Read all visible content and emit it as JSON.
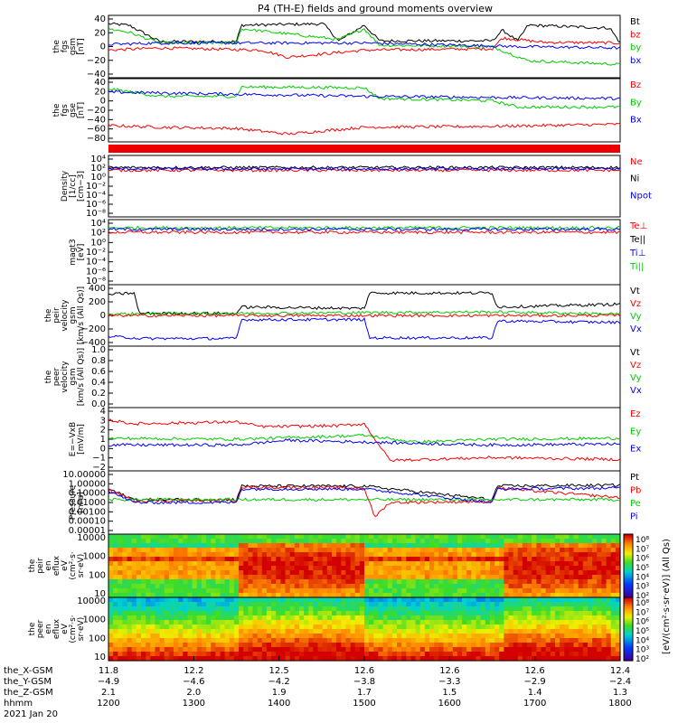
{
  "title": "P4 (TH-E) fields and ground moments overview",
  "chart_data": [
    {
      "id": "fgs_gsm",
      "type": "line",
      "ylabel": [
        "the",
        "fgs",
        "gsm",
        "[nT]"
      ],
      "yticks": [
        "40",
        "20",
        "0",
        "−20",
        "−40"
      ],
      "ylim": [
        -40,
        40
      ],
      "legend": [
        {
          "name": "Bt",
          "color": "#000000"
        },
        {
          "name": "bz",
          "color": "#ff0000"
        },
        {
          "name": "by",
          "color": "#00cc00"
        },
        {
          "name": "bx",
          "color": "#0000ff"
        }
      ],
      "series": [
        {
          "name": "Bt",
          "color": "#000000",
          "x": [
            0,
            0.04,
            0.1,
            0.25,
            0.26,
            0.42,
            0.45,
            0.5,
            0.53,
            0.75,
            0.77,
            0.8,
            0.82,
            0.98,
            1.0
          ],
          "y": [
            32,
            30,
            7,
            7,
            30,
            32,
            8,
            30,
            8,
            8,
            23,
            8,
            30,
            26,
            5
          ]
        },
        {
          "name": "bz",
          "color": "#ff0000",
          "x": [
            0,
            0.1,
            0.3,
            0.35,
            0.5,
            0.75,
            0.77,
            0.85,
            1.0
          ],
          "y": [
            -5,
            -2,
            -5,
            -15,
            -5,
            -3,
            12,
            6,
            5
          ]
        },
        {
          "name": "by",
          "color": "#00cc00",
          "x": [
            0,
            0.04,
            0.1,
            0.25,
            0.26,
            0.45,
            0.5,
            0.53,
            0.75,
            0.82,
            1.0
          ],
          "y": [
            25,
            20,
            5,
            5,
            25,
            10,
            25,
            2,
            0,
            -20,
            -25
          ]
        },
        {
          "name": "bx",
          "color": "#0000ff",
          "x": [
            0,
            0.1,
            0.5,
            0.8,
            1.0
          ],
          "y": [
            3,
            5,
            5,
            0,
            -2
          ]
        }
      ]
    },
    {
      "id": "fgs_gse",
      "type": "line",
      "ylabel": [
        "the",
        "fgs",
        "gse",
        "[nT]"
      ],
      "yticks": [
        "40",
        "20",
        "0",
        "−20",
        "−40",
        "−60",
        "−80"
      ],
      "ylim": [
        -90,
        45
      ],
      "legend": [
        {
          "name": "Bz",
          "color": "#ff0000"
        },
        {
          "name": "By",
          "color": "#00cc00"
        },
        {
          "name": "Bx",
          "color": "#0000ff"
        }
      ],
      "series": [
        {
          "name": "Bz",
          "color": "#ff0000",
          "x": [
            0,
            0.1,
            0.25,
            0.35,
            0.5,
            0.75,
            1.0
          ],
          "y": [
            -58,
            -62,
            -65,
            -78,
            -62,
            -60,
            -55
          ]
        },
        {
          "name": "By",
          "color": "#00cc00",
          "x": [
            0,
            0.1,
            0.25,
            0.26,
            0.5,
            0.53,
            0.75,
            0.8,
            1.0
          ],
          "y": [
            28,
            10,
            10,
            32,
            30,
            5,
            0,
            -15,
            -15
          ]
        },
        {
          "name": "Bx",
          "color": "#0000ff",
          "x": [
            0,
            0.3,
            0.5,
            1.0
          ],
          "y": [
            20,
            14,
            10,
            5
          ]
        }
      ]
    },
    {
      "id": "density",
      "type": "line",
      "ylabel": [
        "Density",
        "[1/cc]",
        "[cm−3]"
      ],
      "scale": "log",
      "yticks": [
        "10⁴",
        "10²",
        "10⁰",
        "10⁻²",
        "10⁻⁴",
        "10⁻⁶",
        "10⁻⁸"
      ],
      "ylim": [
        -8,
        4
      ],
      "legend": [
        {
          "name": "Ne",
          "color": "#ff0000"
        },
        {
          "name": "Ni",
          "color": "#000000"
        },
        {
          "name": "Npot",
          "color": "#0000ff"
        }
      ],
      "series": [
        {
          "name": "Ni",
          "color": "#000000",
          "x": [
            0,
            1.0
          ],
          "y": [
            2.0,
            2.0
          ]
        },
        {
          "name": "Ne",
          "color": "#ff0000",
          "x": [
            0,
            1.0
          ],
          "y": [
            1.4,
            1.4
          ]
        },
        {
          "name": "Npot",
          "color": "#0000ff",
          "x": [
            0,
            1.0
          ],
          "y": [
            1.7,
            1.7
          ]
        }
      ]
    },
    {
      "id": "temp",
      "type": "line",
      "ylabel": [
        "magt3",
        "[eV]"
      ],
      "scale": "log",
      "yticks": [
        "10⁴",
        "10²",
        "10⁰",
        "10⁻²",
        "10⁻⁴",
        "10⁻⁶",
        "10⁻⁸"
      ],
      "ylim": [
        -8,
        4
      ],
      "legend": [
        {
          "name": "Te⊥",
          "color": "#ff0000"
        },
        {
          "name": "Te||",
          "color": "#000000"
        },
        {
          "name": "Ti⊥",
          "color": "#0000ff"
        },
        {
          "name": "Ti||",
          "color": "#00cc00"
        }
      ],
      "series": [
        {
          "name": "Ti||",
          "color": "#00cc00",
          "x": [
            0,
            1.0
          ],
          "y": [
            2.9,
            2.9
          ]
        },
        {
          "name": "Ti⊥",
          "color": "#0000ff",
          "x": [
            0,
            1.0
          ],
          "y": [
            2.6,
            2.6
          ]
        },
        {
          "name": "Te⊥",
          "color": "#ff0000",
          "x": [
            0,
            1.0
          ],
          "y": [
            2.0,
            2.0
          ]
        }
      ]
    },
    {
      "id": "peir_vel",
      "type": "line",
      "ylabel": [
        "the",
        "peir",
        "velocity",
        "gsm",
        "[km/s (All Qs)]"
      ],
      "yticks": [
        "400",
        "200",
        "0",
        "−200",
        "−400"
      ],
      "ylim": [
        -400,
        400
      ],
      "legend": [
        {
          "name": "Vt",
          "color": "#000000"
        },
        {
          "name": "Vz",
          "color": "#ff0000"
        },
        {
          "name": "Vy",
          "color": "#00cc00"
        },
        {
          "name": "Vx",
          "color": "#0000ff"
        }
      ],
      "series": [
        {
          "name": "Vt",
          "color": "#000000",
          "x": [
            0,
            0.05,
            0.06,
            0.25,
            0.26,
            0.5,
            0.51,
            0.75,
            0.76,
            1.0
          ],
          "y": [
            300,
            320,
            30,
            30,
            120,
            100,
            320,
            320,
            120,
            160
          ]
        },
        {
          "name": "Vx",
          "color": "#0000ff",
          "x": [
            0,
            0.05,
            0.06,
            0.25,
            0.26,
            0.5,
            0.51,
            0.75,
            0.76,
            1.0
          ],
          "y": [
            -300,
            -320,
            -330,
            -330,
            -60,
            -60,
            -320,
            -320,
            -80,
            -100
          ]
        },
        {
          "name": "Vy",
          "color": "#00cc00",
          "x": [
            0,
            0.25,
            0.5,
            0.75,
            1.0
          ],
          "y": [
            20,
            30,
            40,
            50,
            20
          ]
        },
        {
          "name": "Vz",
          "color": "#ff0000",
          "x": [
            0,
            1.0
          ],
          "y": [
            -2,
            -2
          ]
        }
      ]
    },
    {
      "id": "peer_vel",
      "type": "line",
      "ylabel": [
        "the",
        "peer",
        "velocity",
        "gsm",
        "[km/s (All Qs)]"
      ],
      "yticks": [
        "1.0",
        "0.8",
        "0.6",
        "0.4",
        "0.2",
        "0.0"
      ],
      "ylim": [
        0,
        1
      ],
      "legend": [
        {
          "name": "Vt",
          "color": "#000000"
        },
        {
          "name": "Vz",
          "color": "#ff0000"
        },
        {
          "name": "Vy",
          "color": "#00cc00"
        },
        {
          "name": "Vx",
          "color": "#0000ff"
        }
      ],
      "series": []
    },
    {
      "id": "efield",
      "type": "line",
      "ylabel": [
        "E=−VxB",
        "[mV/m]"
      ],
      "yticks": [
        "4",
        "3",
        "2",
        "1",
        "0",
        "−1",
        "−2"
      ],
      "ylim": [
        -2,
        4
      ],
      "legend": [
        {
          "name": "Ez",
          "color": "#ff0000"
        },
        {
          "name": "Ey",
          "color": "#00cc00"
        },
        {
          "name": "Ex",
          "color": "#0000ff"
        }
      ],
      "series": [
        {
          "name": "Ez",
          "color": "#ff0000",
          "x": [
            0,
            0.05,
            0.25,
            0.3,
            0.45,
            0.5,
            0.55,
            0.75,
            1.0
          ],
          "y": [
            3,
            2.6,
            2.8,
            2.3,
            2.4,
            2.6,
            -1.2,
            -0.9,
            -1.1
          ]
        },
        {
          "name": "Ey",
          "color": "#00cc00",
          "x": [
            0,
            0.25,
            0.5,
            0.6,
            0.75,
            1.0
          ],
          "y": [
            1.1,
            1.0,
            1.4,
            0.7,
            1.0,
            1.1
          ]
        },
        {
          "name": "Ex",
          "color": "#0000ff",
          "x": [
            0,
            0.25,
            0.35,
            0.5,
            0.75,
            1.0
          ],
          "y": [
            0.4,
            0.4,
            0.9,
            0.7,
            0.4,
            0.5
          ]
        }
      ]
    },
    {
      "id": "pressure",
      "type": "line",
      "ylabel": [
        "Pressure",
        "[nPa]"
      ],
      "scale": "log",
      "yticks": [
        "10.00000",
        "1.00000",
        "0.10000",
        "0.01000",
        "0.00100",
        "0.00010",
        "0.00001"
      ],
      "ylim": [
        -5,
        1
      ],
      "legend": [
        {
          "name": "Pt",
          "color": "#000000"
        },
        {
          "name": "Pb",
          "color": "#ff0000"
        },
        {
          "name": "Pe",
          "color": "#00cc00"
        },
        {
          "name": "Pi",
          "color": "#0000ff"
        }
      ],
      "series": [
        {
          "name": "Pt",
          "color": "#000000",
          "x": [
            0,
            0.05,
            0.25,
            0.26,
            0.5,
            0.75,
            0.76,
            1.0
          ],
          "y": [
            -0.6,
            -1.7,
            -1.7,
            -0.3,
            -0.3,
            -1.7,
            -0.3,
            -0.2
          ]
        },
        {
          "name": "Pb",
          "color": "#ff0000",
          "x": [
            0,
            0.05,
            0.25,
            0.26,
            0.5,
            0.52,
            0.55,
            0.75,
            0.76,
            1.0
          ],
          "y": [
            -0.7,
            -1.8,
            -1.8,
            -0.4,
            -0.5,
            -3.5,
            -2.0,
            -1.9,
            -0.5,
            -1.5
          ]
        },
        {
          "name": "Pe",
          "color": "#00cc00",
          "x": [
            0,
            1.0
          ],
          "y": [
            -1.7,
            -1.7
          ]
        },
        {
          "name": "Pi",
          "color": "#0000ff",
          "x": [
            0,
            0.05,
            0.25,
            0.26,
            0.5,
            0.75,
            0.76,
            1.0
          ],
          "y": [
            -0.8,
            -2.0,
            -2.0,
            -0.6,
            -0.6,
            -2.0,
            -0.6,
            -0.5
          ]
        }
      ]
    },
    {
      "id": "peir_spec",
      "type": "heatmap",
      "ylabel": [
        "the",
        "peir",
        "en",
        "eflux",
        "eV",
        "(cm²·s·",
        "sr·eV)"
      ],
      "yticks": [
        "10000",
        "1000",
        "100",
        "10"
      ],
      "colorbar": [
        "10⁸",
        "10⁷",
        "10⁶",
        "10⁵",
        "10⁴",
        "10³",
        "10²"
      ]
    },
    {
      "id": "peer_spec",
      "type": "heatmap",
      "ylabel": [
        "the",
        "peer",
        "en",
        "eflux",
        "eV",
        "(cm²·s·",
        "sr·eV)"
      ],
      "yticks": [
        "10000",
        "1000",
        "100",
        "10"
      ],
      "colorbar": [
        "10⁸",
        "10⁷",
        "10⁶",
        "10⁵",
        "10⁴",
        "10³",
        "10²"
      ]
    }
  ],
  "colorbar_label": "[eV/(cm²·s·sr·eV)] (All Qs)",
  "xaxis": {
    "row_labels": [
      "the_X-GSM",
      "the_Y-GSM",
      "the_Z-GSM",
      "hhmm"
    ],
    "date": "2021 Jan 20",
    "columns": [
      [
        "11.8",
        "−4.9",
        "2.1",
        "1200"
      ],
      [
        "12.2",
        "−4.6",
        "2.0",
        "1300"
      ],
      [
        "12.5",
        "−4.2",
        "1.9",
        "1400"
      ],
      [
        "12.6",
        "−3.8",
        "1.7",
        "1500"
      ],
      [
        "12.6",
        "−3.3",
        "1.5",
        "1600"
      ],
      [
        "12.6",
        "−2.9",
        "1.4",
        "1700"
      ],
      [
        "12.4",
        "−2.4",
        "1.3",
        "1800"
      ]
    ]
  }
}
